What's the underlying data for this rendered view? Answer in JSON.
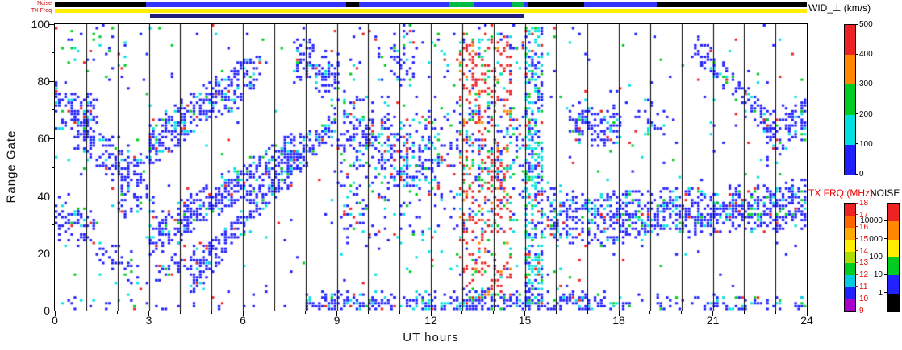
{
  "strip_rows": {
    "noise_label": "Noise",
    "txfreq_label": "TX Freq"
  },
  "chart_data": {
    "type": "heatmap",
    "title": "",
    "xlabel": "UT hours",
    "ylabel": "Range Gate",
    "x_range": [
      0,
      24
    ],
    "y_range": [
      0,
      100
    ],
    "x_tick_step": 3,
    "y_tick_step": 20,
    "xtick_labels": [
      "0",
      "3",
      "6",
      "9",
      "12",
      "15",
      "18",
      "21",
      "24"
    ],
    "ytick_labels": [
      "0",
      "20",
      "40",
      "60",
      "80",
      "100"
    ],
    "grid": "vertical-hour-lines",
    "value_label": "WID_⊥ (km/s)",
    "value_range": [
      0,
      500
    ],
    "cols": 240,
    "rows": 100,
    "seed": 7,
    "palette": {
      "blue": "#1f1fff",
      "cyan": "#00e0e0",
      "green": "#00cc22",
      "red": "#ee2222",
      "orange": "#ff8800"
    },
    "default_colors": {
      "blue": 0.78,
      "cyan": 0.14,
      "green": 0.05,
      "red": 0.03
    },
    "colorbars": [
      {
        "id": "wid",
        "title": "WID_⊥ (km/s)",
        "title_color": "#000000",
        "tick_color": "#000000",
        "tick_labels": [
          "500",
          "400",
          "300",
          "200",
          "100",
          "0"
        ],
        "segment_colors_top_to_bottom": [
          "#ee2222",
          "#ff8800",
          "#00cc22",
          "#00e0e0",
          "#1f1fff"
        ]
      },
      {
        "id": "txfrq",
        "title": "TX FRQ (MHz)",
        "title_color": "#ee0000",
        "tick_color": "#ee0000",
        "tick_labels": [
          "18",
          "17",
          "16",
          "15",
          "14",
          "13",
          "12",
          "11",
          "10",
          "9"
        ],
        "segment_colors_top_to_bottom": [
          "#ee2222",
          "#ff6600",
          "#ffaa00",
          "#ffee00",
          "#aadd00",
          "#00cc22",
          "#00cce0",
          "#2222ff",
          "#aa00cc"
        ]
      },
      {
        "id": "noise",
        "title": "NOISE",
        "title_color": "#000000",
        "tick_color": "#000000",
        "tick_labels": [
          "10000",
          "1000",
          "100",
          "10",
          "1"
        ],
        "segment_colors_top_to_bottom": [
          "#ee2222",
          "#ff8800",
          "#ffee00",
          "#00cc22",
          "#2222ff",
          "#000000"
        ]
      }
    ],
    "strips": {
      "noise": {
        "base": "#000000",
        "blue": "#3333ff",
        "green": "#00bb44",
        "blue_segments": [
          [
            2.9,
            9.3
          ],
          [
            9.7,
            12.6
          ],
          [
            13.4,
            15.1
          ],
          [
            16.9,
            19.2
          ]
        ],
        "green_segments": [
          [
            12.6,
            13.4
          ],
          [
            14.6,
            15.0
          ]
        ]
      },
      "txfreq": {
        "color": "#ffee00",
        "extra_color": "#221c7a",
        "extra_range": [
          3.05,
          14.95
        ]
      }
    },
    "features": [
      {
        "t0": 0.0,
        "t1": 1.4,
        "g0": 72,
        "g1": 66,
        "hw": 9,
        "density": 0.5
      },
      {
        "t0": 0.6,
        "t1": 3.0,
        "g0": 62,
        "g1": 44,
        "hw": 8,
        "density": 0.5
      },
      {
        "t0": 0.0,
        "t1": 1.3,
        "g0": 30,
        "g1": 28,
        "hw": 7,
        "density": 0.45
      },
      {
        "t0": 1.3,
        "t1": 2.7,
        "g0": 20,
        "g1": 12,
        "hw": 6,
        "density": 0.2
      },
      {
        "t0": 2.0,
        "t1": 3.2,
        "g0": 38,
        "g1": 36,
        "hw": 5,
        "density": 0.28
      },
      {
        "t0": 0.2,
        "t1": 3.0,
        "g0": 92,
        "g1": 92,
        "hw": 8,
        "density": 0.07,
        "colors": {
          "blue": 0.5,
          "cyan": 0.2,
          "green": 0.15,
          "red": 0.15
        }
      },
      {
        "t0": 3.0,
        "t1": 8.0,
        "g0": 24,
        "g1": 58,
        "hw": 7,
        "density": 0.6
      },
      {
        "t0": 3.0,
        "t1": 6.6,
        "g0": 58,
        "g1": 84,
        "hw": 8,
        "density": 0.5
      },
      {
        "t0": 4.3,
        "t1": 9.0,
        "g0": 10,
        "g1": 68,
        "hw": 6,
        "density": 0.5
      },
      {
        "t0": 3.2,
        "t1": 5.2,
        "g0": 13,
        "g1": 21,
        "hw": 5,
        "density": 0.28
      },
      {
        "t0": 7.7,
        "t1": 9.1,
        "g0": 87,
        "g1": 79,
        "hw": 9,
        "density": 0.5
      },
      {
        "t0": 9.2,
        "t1": 10.2,
        "g0": 64,
        "g1": 60,
        "hw": 9,
        "density": 0.4
      },
      {
        "t0": 9.0,
        "t1": 15.2,
        "g0": 50,
        "g1": 50,
        "hw": 25,
        "density": 0.16,
        "colors": {
          "blue": 0.58,
          "cyan": 0.2,
          "green": 0.13,
          "red": 0.09
        }
      },
      {
        "t0": 10.3,
        "t1": 12.4,
        "g0": 56,
        "g1": 52,
        "hw": 14,
        "density": 0.3,
        "colors": {
          "blue": 0.6,
          "cyan": 0.25,
          "green": 0.1,
          "red": 0.05
        }
      },
      {
        "t0": 10.7,
        "t1": 11.5,
        "g0": 86,
        "g1": 84,
        "hw": 8,
        "density": 0.3
      },
      {
        "t0": 9.3,
        "t1": 15.0,
        "g0": 90,
        "g1": 90,
        "hw": 10,
        "density": 0.1,
        "colors": {
          "blue": 0.45,
          "cyan": 0.2,
          "green": 0.15,
          "red": 0.2
        }
      },
      {
        "t0": 12.9,
        "t1": 14.6,
        "g0": 50,
        "g1": 50,
        "hw": 46,
        "density": 0.26,
        "uniform": true,
        "colors": {
          "red": 0.55,
          "orange": 0.12,
          "green": 0.11,
          "cyan": 0.1,
          "blue": 0.12
        }
      },
      {
        "t0": 8.0,
        "t1": 17.5,
        "g0": 2,
        "g1": 2,
        "hw": 4,
        "density": 0.55
      },
      {
        "t0": 17.5,
        "t1": 24.0,
        "g0": 2,
        "g1": 2,
        "hw": 3,
        "density": 0.3
      },
      {
        "t0": 0.0,
        "t1": 8.0,
        "g0": 1,
        "g1": 1,
        "hw": 2,
        "density": 0.12
      },
      {
        "t0": 15.0,
        "t1": 15.6,
        "g0": 50,
        "g1": 50,
        "hw": 48,
        "density": 0.42,
        "uniform": true,
        "colors": {
          "cyan": 0.45,
          "blue": 0.3,
          "green": 0.18,
          "red": 0.07
        }
      },
      {
        "t0": 15.6,
        "t1": 17.6,
        "g0": 34,
        "g1": 30,
        "hw": 9,
        "density": 0.5
      },
      {
        "t0": 16.4,
        "t1": 18.1,
        "g0": 66,
        "g1": 62,
        "hw": 8,
        "density": 0.45
      },
      {
        "t0": 17.6,
        "t1": 24.0,
        "g0": 32,
        "g1": 36,
        "hw": 9,
        "density": 0.55
      },
      {
        "t0": 18.6,
        "t1": 19.6,
        "g0": 68,
        "g1": 64,
        "hw": 7,
        "density": 0.25
      },
      {
        "t0": 20.4,
        "t1": 23.0,
        "g0": 92,
        "g1": 62,
        "hw": 5,
        "density": 0.45
      },
      {
        "t0": 22.7,
        "t1": 24.0,
        "g0": 60,
        "g1": 68,
        "hw": 8,
        "density": 0.5
      },
      {
        "t0": 0.0,
        "t1": 24.0,
        "g0": 50,
        "g1": 50,
        "hw": 50,
        "density": 0.018,
        "uniform": true,
        "colors": {
          "blue": 0.45,
          "cyan": 0.2,
          "green": 0.15,
          "red": 0.2
        }
      }
    ]
  }
}
